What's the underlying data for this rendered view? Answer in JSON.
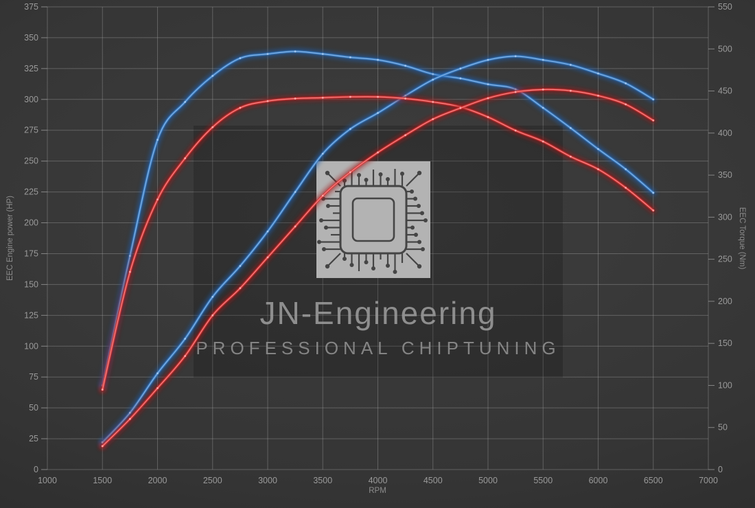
{
  "chart": {
    "xlabel": "RPM",
    "left_axis_label": "EEC Engine power (HP)",
    "right_axis_label": "EEC Torque (Nm)"
  },
  "watermark": {
    "title": "JN-Engineering",
    "subtitle": "PROFESSIONAL CHIPTUNING"
  },
  "colors": {
    "blue": "#3e84cf",
    "blue_glow": "#1b5dad",
    "blue_core": "#aacdf2",
    "red": "#e13434",
    "red_glow": "#9e1717",
    "red_core": "#ffb2b2",
    "grid": "#a8a8a8",
    "tick_label": "#9a9a9a",
    "axis_title": "#8d8d8d",
    "watermark_panel": "rgba(0,0,0,0.18)",
    "watermark_text": "#9c9c9c",
    "watermark_subtext": "#949494",
    "chip_body": "#b3b3b3",
    "chip_trace": "#454545"
  },
  "chart_data": {
    "type": "line",
    "title": "",
    "xlabel": "RPM",
    "ylabel_left": "EEC Engine power (HP)",
    "ylabel_right": "EEC Torque (Nm)",
    "grid": true,
    "legend": false,
    "x_range": [
      1000,
      7000
    ],
    "left_range": [
      0,
      375
    ],
    "right_range": [
      0,
      550
    ],
    "x_ticks": [
      1000,
      1500,
      2000,
      2500,
      3000,
      3500,
      4000,
      4500,
      5000,
      5500,
      6000,
      6500,
      7000
    ],
    "left_ticks": [
      0,
      25,
      50,
      75,
      100,
      125,
      150,
      175,
      200,
      225,
      250,
      275,
      300,
      325,
      350,
      375
    ],
    "right_ticks": [
      0,
      50,
      100,
      150,
      200,
      250,
      300,
      350,
      400,
      450,
      500,
      550
    ],
    "x": [
      1500,
      1750,
      2000,
      2250,
      2500,
      2750,
      3000,
      3250,
      3500,
      3750,
      4000,
      4250,
      4500,
      4750,
      5000,
      5250,
      5500,
      5750,
      6000,
      6250,
      6500
    ],
    "series": [
      {
        "name": "torque-blue",
        "axis": "right",
        "color_key": "blue",
        "values": [
          100,
          254,
          392,
          437,
          468,
          489,
          494,
          497,
          494,
          490,
          487,
          480,
          470,
          465,
          458,
          452,
          430,
          406,
          381,
          357,
          329
        ]
      },
      {
        "name": "power-blue",
        "axis": "left",
        "color_key": "blue",
        "values": [
          22,
          46,
          78,
          106,
          140,
          165,
          193,
          225,
          256,
          276,
          289,
          303,
          316,
          325,
          332,
          335,
          332,
          328,
          321,
          313,
          300
        ]
      },
      {
        "name": "torque-red",
        "axis": "right",
        "color_key": "red",
        "values": [
          95,
          235,
          321,
          370,
          407,
          430,
          438,
          441,
          442,
          443,
          443,
          441,
          437,
          431,
          419,
          403,
          390,
          372,
          357,
          335,
          308
        ]
      },
      {
        "name": "power-red",
        "axis": "left",
        "color_key": "red",
        "values": [
          19,
          41,
          66,
          92,
          125,
          147,
          172,
          197,
          222,
          241,
          257,
          271,
          284,
          293,
          301,
          306,
          308,
          307,
          303,
          296,
          283
        ]
      }
    ]
  }
}
